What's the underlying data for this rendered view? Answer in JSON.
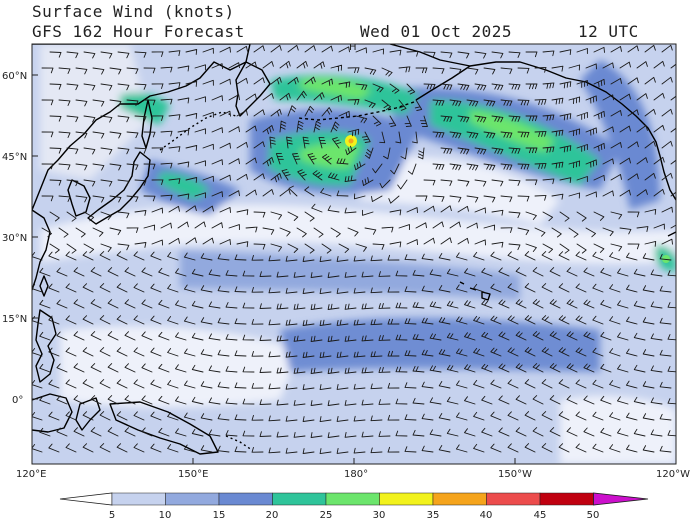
{
  "title": {
    "line1": "Surface Wind (knots)",
    "line2": "GFS 162 Hour Forecast",
    "date": "Wed 01 Oct 2025",
    "time": "12 UTC"
  },
  "axes": {
    "lat_labels": [
      "60°N",
      "45°N",
      "30°N",
      "15°N",
      "0°"
    ],
    "lon_labels": [
      "120°E",
      "150°E",
      "180°",
      "150°W",
      "120°W"
    ]
  },
  "colorbar": {
    "ticks": [
      "5",
      "10",
      "15",
      "20",
      "25",
      "30",
      "35",
      "40",
      "45",
      "50"
    ],
    "colors": [
      "#e8ecf8",
      "#c6d2ee",
      "#92a9de",
      "#6a89d2",
      "#2fc49a",
      "#6ce56c",
      "#f2f21c",
      "#f5a41c",
      "#ec4c4c",
      "#c00010",
      "#cc10cc"
    ]
  },
  "map": {
    "ocean_color": "#c6d2ee",
    "land_color": "#e4e8f4",
    "coast_color": "#000000",
    "barb_color": "#1a1a1a"
  }
}
